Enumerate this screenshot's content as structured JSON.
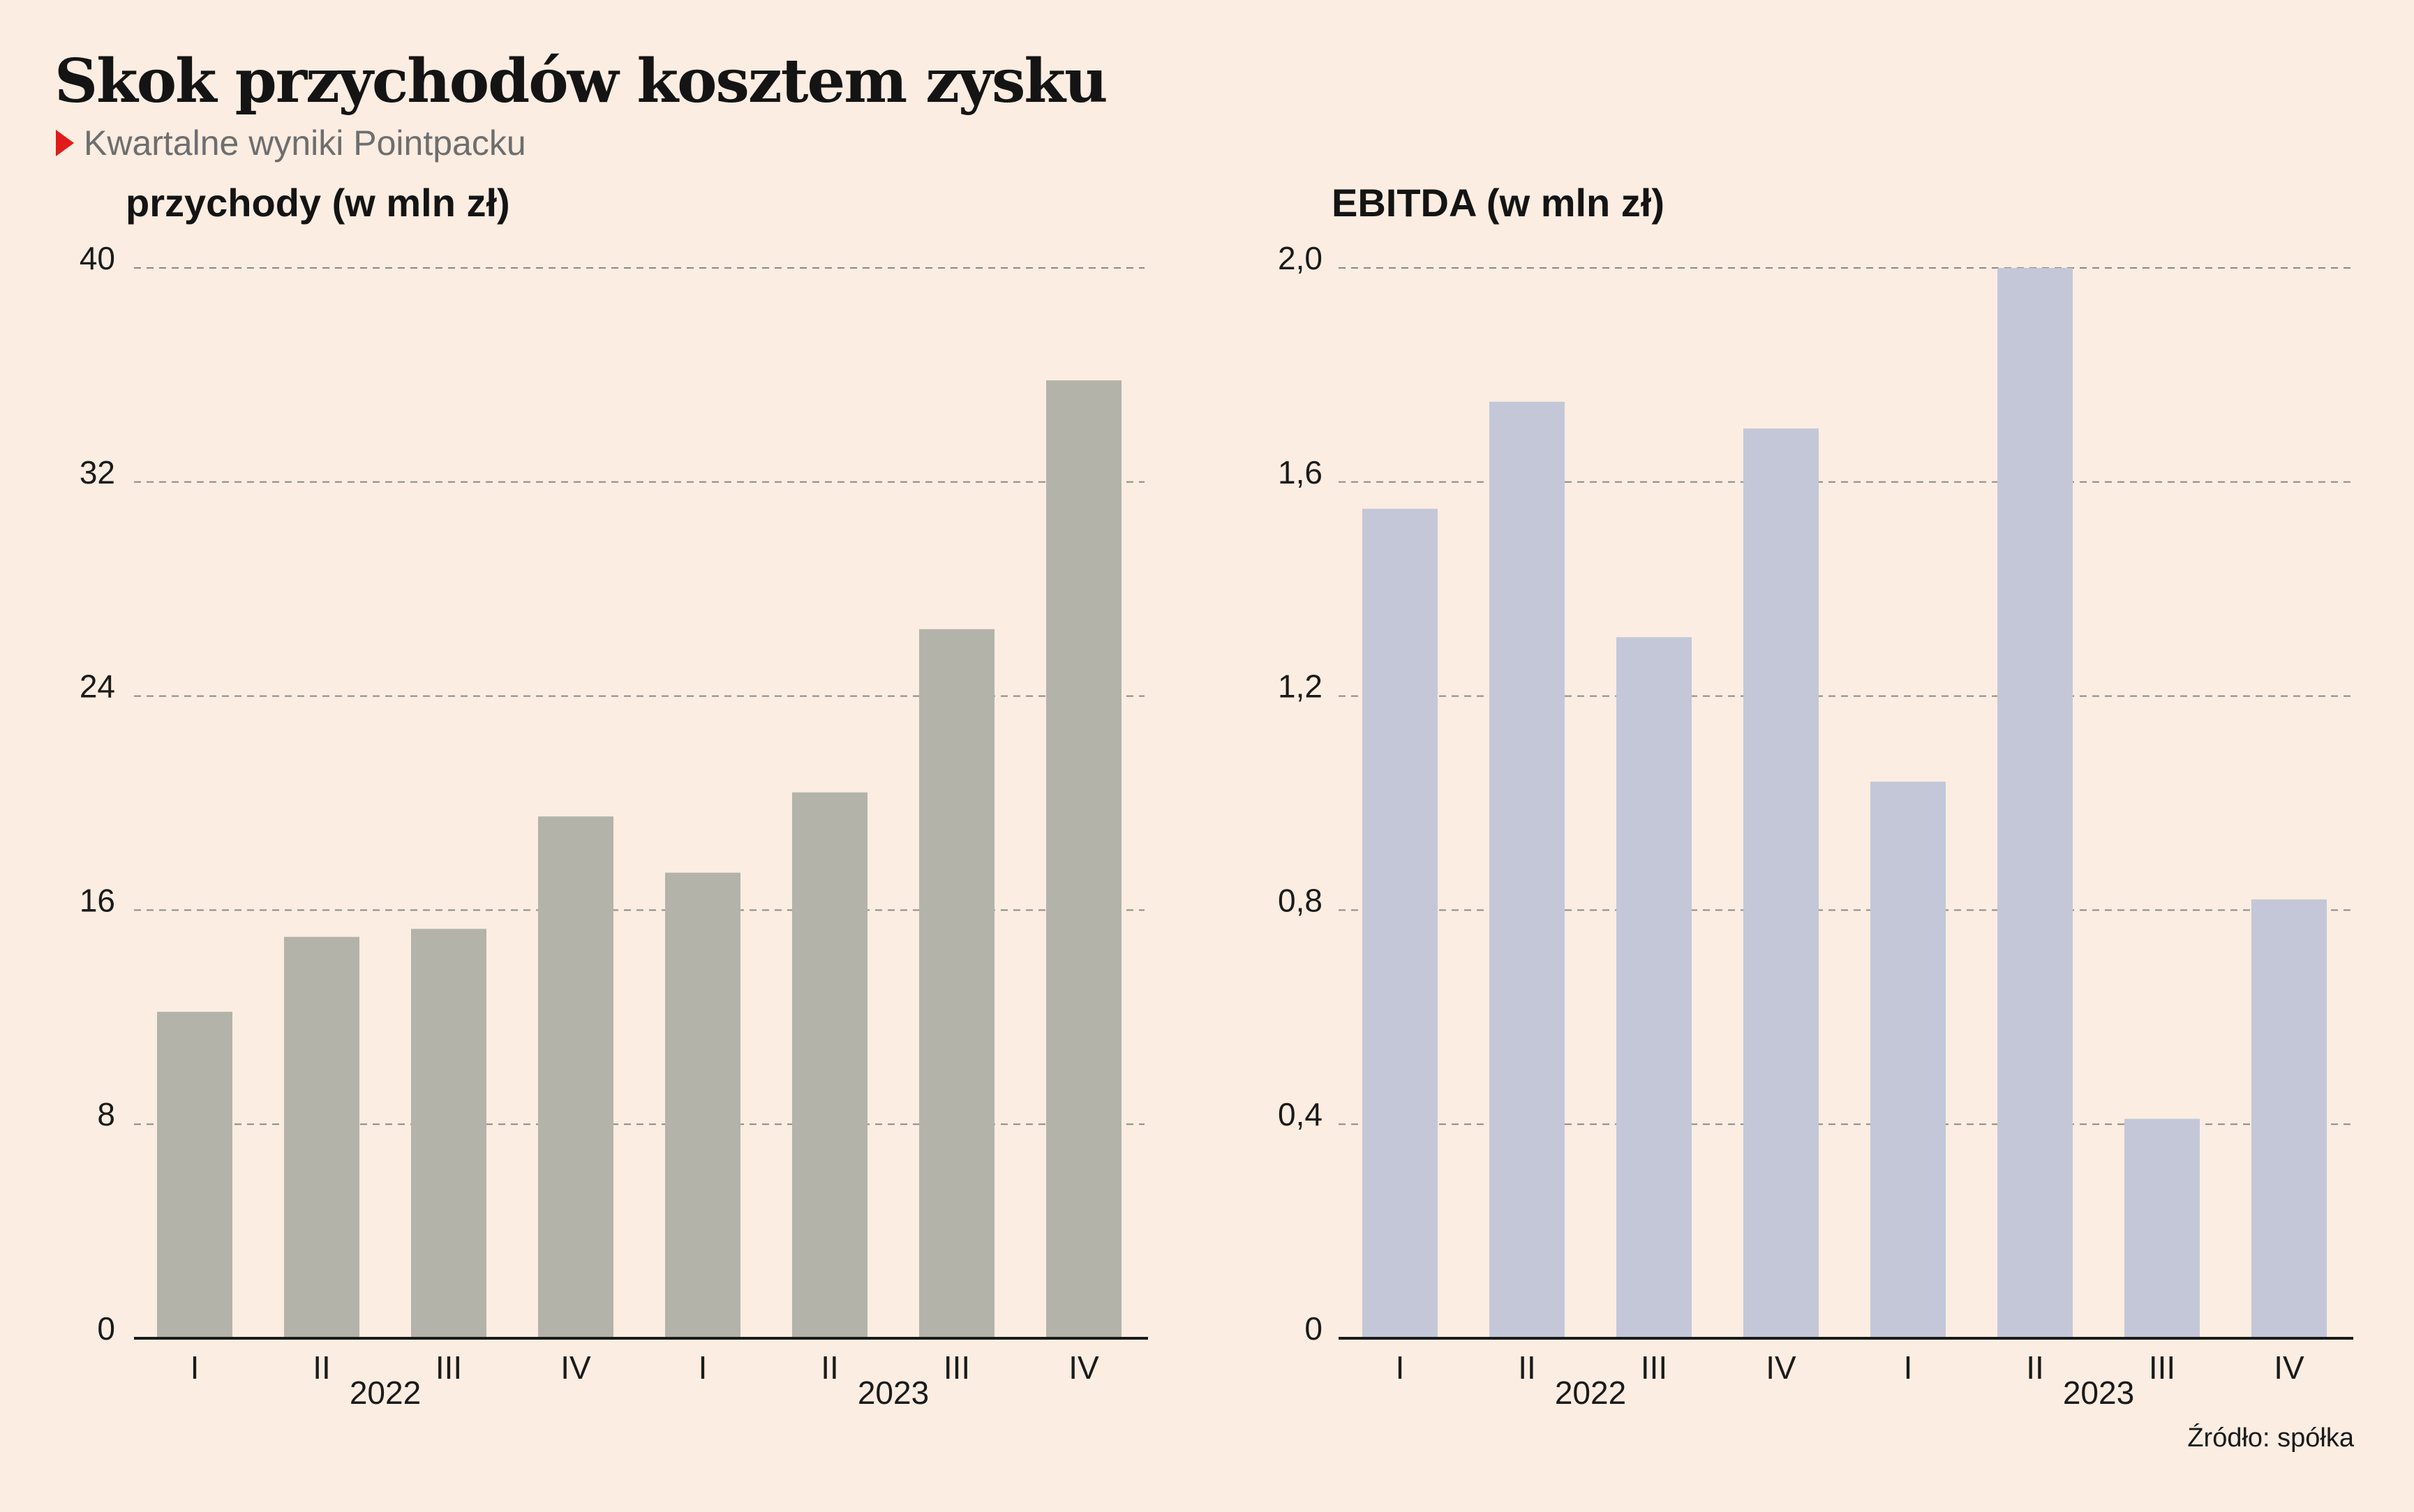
{
  "header": {
    "title": "Skok przychodów kosztem zysku",
    "subtitle": "Kwartalne wyniki Pointpacku"
  },
  "source": "Źródło: spółka",
  "colors": {
    "background": "#fbede1",
    "revenue_bar": "#b3b3aa",
    "ebitda_bar": "#c3c7d8",
    "accent": "#e11a1a",
    "grid": "#8a8a8a"
  },
  "chart_data": [
    {
      "type": "bar",
      "title": "przychody (w mln zł)",
      "categories": [
        "I",
        "II",
        "III",
        "IV",
        "I",
        "II",
        "III",
        "IV"
      ],
      "groups": [
        {
          "label": "2022",
          "range": [
            0,
            3
          ]
        },
        {
          "label": "2023",
          "range": [
            4,
            7
          ]
        }
      ],
      "values": [
        12.2,
        15.0,
        15.3,
        19.5,
        17.4,
        20.4,
        26.5,
        35.8
      ],
      "ylim": [
        0,
        40
      ],
      "yticks": [
        0,
        8,
        16,
        24,
        32,
        40
      ],
      "ytick_labels": [
        "0",
        "8",
        "16",
        "24",
        "32",
        "40"
      ],
      "grid": true,
      "color": "#b3b3aa"
    },
    {
      "type": "bar",
      "title": "EBITDA (w mln zł)",
      "categories": [
        "I",
        "II",
        "III",
        "IV",
        "I",
        "II",
        "III",
        "IV"
      ],
      "groups": [
        {
          "label": "2022",
          "range": [
            0,
            3
          ]
        },
        {
          "label": "2023",
          "range": [
            4,
            7
          ]
        }
      ],
      "values": [
        1.55,
        1.75,
        1.31,
        1.7,
        1.04,
        2.0,
        0.41,
        0.82
      ],
      "ylim": [
        0,
        2.0
      ],
      "yticks": [
        0,
        0.4,
        0.8,
        1.2,
        1.6,
        2.0
      ],
      "ytick_labels": [
        "0",
        "0,4",
        "0,8",
        "1,2",
        "1,6",
        "2,0"
      ],
      "grid": true,
      "color": "#c3c7d8"
    }
  ]
}
